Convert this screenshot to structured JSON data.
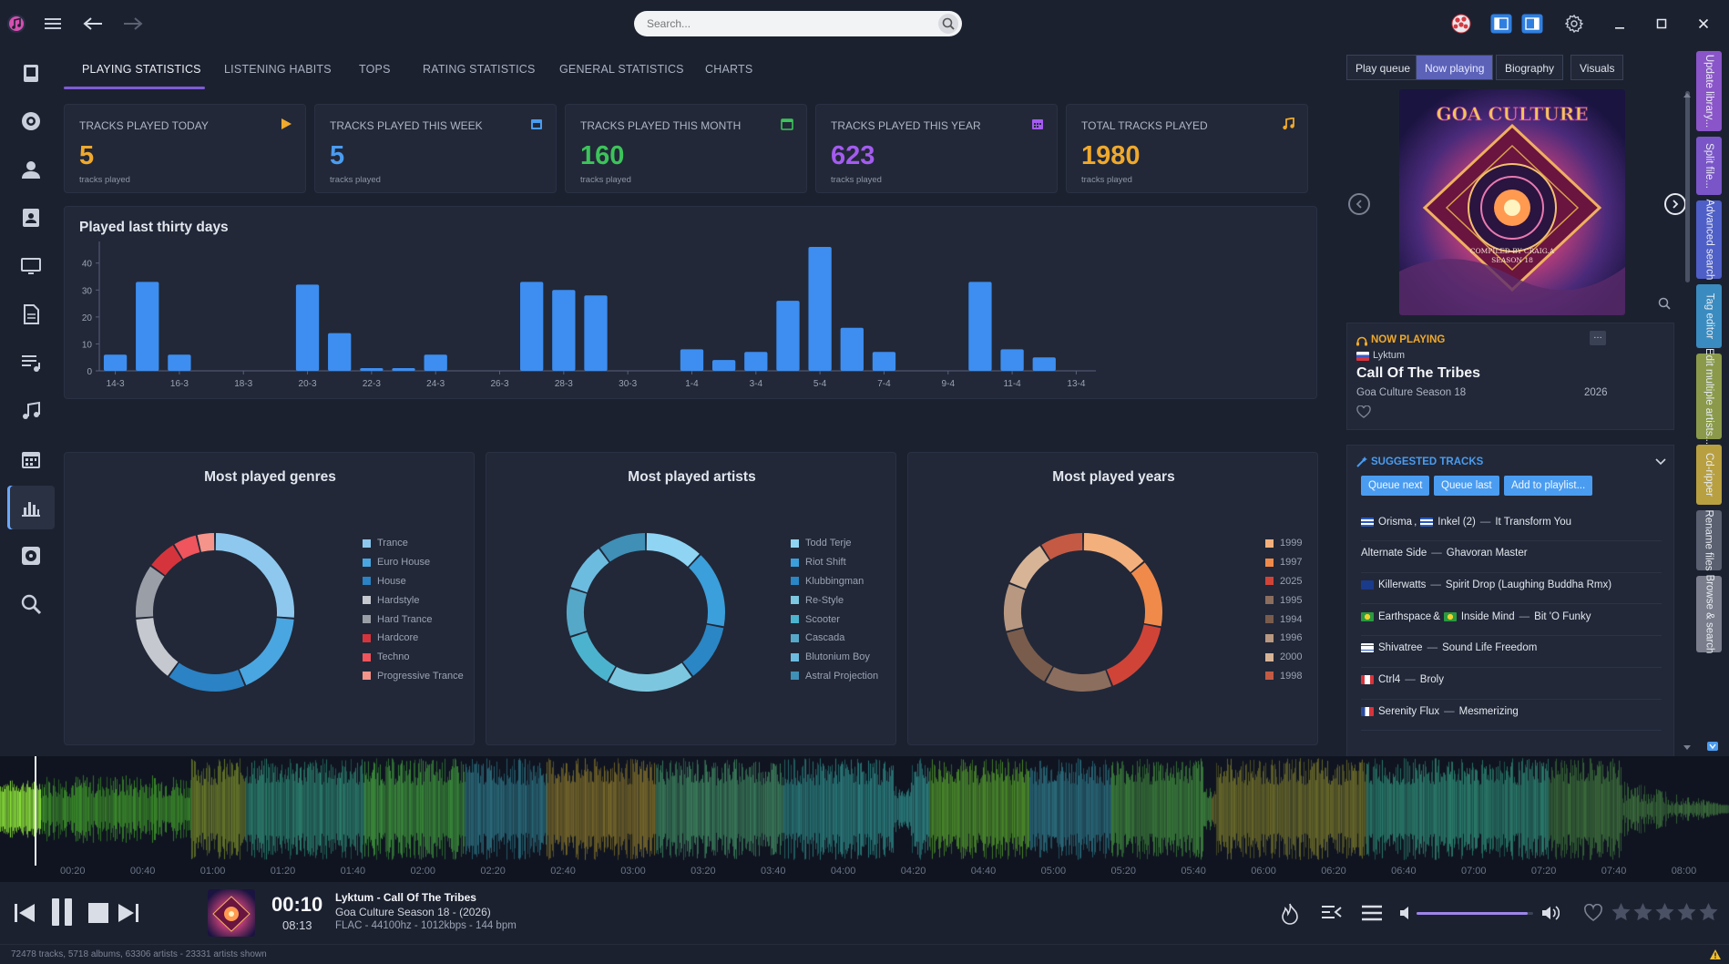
{
  "header": {
    "search_placeholder": "Search..."
  },
  "colors": {
    "accent_blue": "#4a9cf0",
    "accent_purple": "#7e5bd6",
    "orange": "#f0a92c",
    "green": "#3cc45a",
    "violet": "#a45bf0",
    "bar_blue": "#3d8ef0"
  },
  "sidebar": {
    "items": [
      "library-icon",
      "cd-icon",
      "artist-icon",
      "contacts-icon",
      "monitor-icon",
      "document-icon",
      "playlist-icon",
      "music-note-icon",
      "calendar-icon",
      "statistics-icon",
      "disc-icon",
      "search-icon"
    ]
  },
  "tabs": [
    "PLAYING STATISTICS",
    "LISTENING HABITS",
    "TOPS",
    "RATING STATISTICS",
    "GENERAL STATISTICS",
    "CHARTS"
  ],
  "cards": [
    {
      "title": "TRACKS PLAYED TODAY",
      "value": "5",
      "sub": "tracks played",
      "color": "#f0a92c",
      "icon": "play-icon"
    },
    {
      "title": "TRACKS PLAYED THIS WEEK",
      "value": "5",
      "sub": "tracks played",
      "color": "#4a9cf0",
      "icon": "calendar-icon"
    },
    {
      "title": "TRACKS PLAYED THIS MONTH",
      "value": "160",
      "sub": "tracks played",
      "color": "#3cc45a",
      "icon": "calendar-icon"
    },
    {
      "title": "TRACKS PLAYED THIS YEAR",
      "value": "623",
      "sub": "tracks played",
      "color": "#a45bf0",
      "icon": "calendar-icon"
    },
    {
      "title": "TOTAL TRACKS PLAYED",
      "value": "1980",
      "sub": "tracks played",
      "color": "#f0a92c",
      "icon": "music-note-icon"
    }
  ],
  "chart_data": [
    {
      "type": "bar",
      "title": "Played last thirty days",
      "categories": [
        "14-3",
        "15-3",
        "16-3",
        "17-3",
        "18-3",
        "19-3",
        "20-3",
        "21-3",
        "22-3",
        "23-3",
        "24-3",
        "25-3",
        "26-3",
        "27-3",
        "28-3",
        "29-3",
        "30-3",
        "31-3",
        "1-4",
        "2-4",
        "3-4",
        "4-4",
        "5-4",
        "6-4",
        "7-4",
        "8-4",
        "9-4",
        "10-4",
        "11-4",
        "12-4",
        "13-4"
      ],
      "tick_labels": [
        "14-3",
        "16-3",
        "18-3",
        "20-3",
        "22-3",
        "24-3",
        "26-3",
        "28-3",
        "30-3",
        "1-4",
        "3-4",
        "5-4",
        "7-4",
        "9-4",
        "11-4",
        "13-4"
      ],
      "values": [
        6,
        33,
        6,
        0,
        0,
        0,
        32,
        14,
        1,
        1,
        6,
        0,
        0,
        33,
        30,
        28,
        0,
        0,
        8,
        4,
        7,
        26,
        46,
        16,
        7,
        0,
        0,
        33,
        8,
        5,
        0
      ],
      "yticks": [
        0,
        10,
        20,
        30,
        40
      ],
      "ylim": [
        0,
        46
      ],
      "grid": false,
      "color": "#3d8ef0"
    },
    {
      "type": "pie",
      "title": "Most played genres",
      "labels": [
        "Trance",
        "Euro House",
        "House",
        "Hardstyle",
        "Hard Trance",
        "Hardcore",
        "Techno",
        "Progressive Trance"
      ],
      "values": [
        21,
        14,
        13,
        11,
        9,
        5,
        4,
        3
      ],
      "colors": [
        "#8ec8ee",
        "#4aa6e0",
        "#2b82c4",
        "#c5c9cf",
        "#9a9ea6",
        "#d6343c",
        "#f0545c",
        "#f4948a"
      ]
    },
    {
      "type": "pie",
      "title": "Most played artists",
      "labels": [
        "Todd Terje",
        "Riot Shift",
        "Klubbingman",
        "Re-Style",
        "Scooter",
        "Cascada",
        "Blutonium Boy",
        "Astral Projection"
      ],
      "values": [
        12,
        16,
        12,
        18,
        12,
        10,
        10,
        10
      ],
      "colors": [
        "#8fd4f2",
        "#3a9fdb",
        "#2a86c4",
        "#7cc7df",
        "#4cb3cf",
        "#56a8c8",
        "#6cbce0",
        "#3f8fb6"
      ]
    },
    {
      "type": "pie",
      "title": "Most played years",
      "labels": [
        "1999",
        "1997",
        "2025",
        "1995",
        "1994",
        "1996",
        "2000",
        "1998"
      ],
      "values": [
        14,
        14,
        16,
        14,
        13,
        10,
        10,
        9
      ],
      "colors": [
        "#f4b07c",
        "#f08a4a",
        "#d04438",
        "#8c6e5e",
        "#7a5c4c",
        "#b89880",
        "#d8b496",
        "#c45a44"
      ]
    }
  ],
  "right_pane": {
    "tabs": [
      "Play queue",
      "Now playing",
      "Biography",
      "Visuals"
    ],
    "album_art_text": {
      "title": "GOA CULTURE",
      "compiled": "COMPILED BY CRAIG.A",
      "season": "SEASON 18"
    },
    "now_playing": {
      "label": "NOW PLAYING",
      "artist": "Lyktum",
      "title": "Call Of The Tribes",
      "album": "Goa Culture Season 18",
      "year": "2026"
    },
    "suggested": {
      "label": "SUGGESTED TRACKS",
      "buttons": [
        "Queue next",
        "Queue last",
        "Add to playlist..."
      ],
      "rows": [
        {
          "parts": [
            {
              "flag": "gr",
              "text": "Orisma"
            },
            {
              "sep": ","
            },
            {
              "flag": "gr",
              "text": "Inkel (2)"
            }
          ],
          "title": "It Transform You"
        },
        {
          "parts": [
            {
              "text": "Alternate Side"
            }
          ],
          "title": "Ghavoran Master"
        },
        {
          "parts": [
            {
              "flag": "uk",
              "text": "Killerwatts"
            }
          ],
          "title": "Spirit Drop (Laughing Buddha Rmx)"
        },
        {
          "parts": [
            {
              "flag": "br",
              "text": "Earthspace"
            },
            {
              "sep": "&"
            },
            {
              "flag": "br",
              "text": "Inside Mind"
            }
          ],
          "title": "Bit 'O Funky"
        },
        {
          "parts": [
            {
              "flag": "il",
              "text": "Shivatree"
            }
          ],
          "title": "Sound Life Freedom"
        },
        {
          "parts": [
            {
              "flag": "ca",
              "text": "Ctrl4"
            }
          ],
          "title": "Broly"
        },
        {
          "parts": [
            {
              "flag": "fr",
              "text": "Serenity Flux"
            }
          ],
          "title": "Mesmerizing"
        }
      ]
    }
  },
  "vertical_tabs": [
    {
      "label": "Update library...",
      "color": "#8a55c8"
    },
    {
      "label": "Split file...",
      "color": "#7a55c8"
    },
    {
      "label": "Advanced search",
      "color": "#4f5fc8"
    },
    {
      "label": "Tag editor",
      "color": "#3a8cc0"
    },
    {
      "label": "Edit multiple artists...",
      "color": "#8a9a4a"
    },
    {
      "label": "Cd-ripper",
      "color": "#b8a040"
    },
    {
      "label": "Rename files",
      "color": "#5a6070"
    },
    {
      "label": "Browse & search",
      "color": "#7a7e8c"
    }
  ],
  "waveform": {
    "ticks": [
      "00:20",
      "00:40",
      "01:00",
      "01:20",
      "01:40",
      "02:00",
      "02:20",
      "02:40",
      "03:00",
      "03:20",
      "03:40",
      "04:00",
      "04:20",
      "04:40",
      "05:00",
      "05:20",
      "05:40",
      "06:00",
      "06:20",
      "06:40",
      "07:00",
      "07:20",
      "07:40",
      "08:00"
    ],
    "progress": 0.02
  },
  "player": {
    "elapsed": "00:10",
    "duration": "08:13",
    "track": "Lyktum - Call Of The Tribes",
    "album": "Goa Culture Season 18 - (2026)",
    "format": "FLAC - 44100hz - 1012kbps - 144 bpm",
    "volume": 0.95,
    "rating": 0
  },
  "status": {
    "text": "72478 tracks, 5718 albums, 63306 artists - 23331 artists shown"
  }
}
